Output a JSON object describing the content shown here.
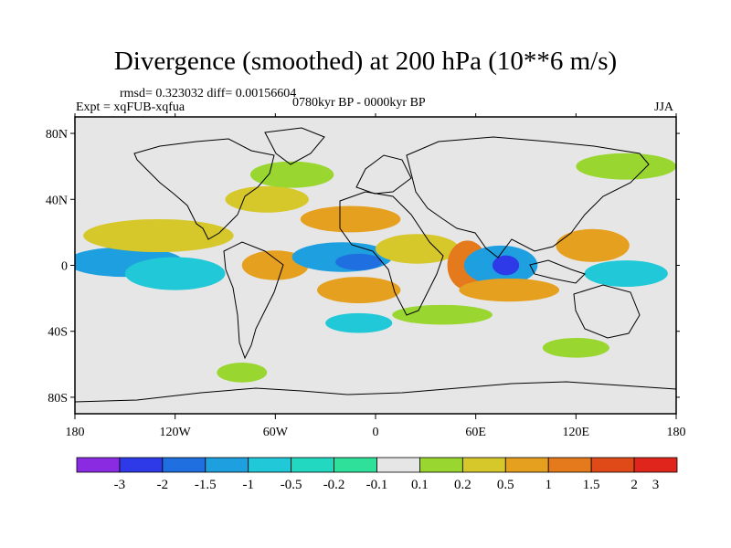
{
  "header": {
    "title": "Divergence (smoothed) at 200 hPa (10**6 m/s)",
    "stats": "rmsd= 0.323032 diff= 0.00156604",
    "experiment": "Expt = xqFUB-xqfua",
    "period": "0780kyr BP - 0000kyr BP",
    "season": "JJA"
  },
  "chart_data": {
    "type": "heatmap",
    "title": "Divergence (smoothed) at 200 hPa (10**6 m/s)",
    "xlabel": "",
    "ylabel": "",
    "x_ticks": [
      {
        "value": -180,
        "label": "180"
      },
      {
        "value": -120,
        "label": "120W"
      },
      {
        "value": -60,
        "label": "60W"
      },
      {
        "value": 0,
        "label": "0"
      },
      {
        "value": 60,
        "label": "60E"
      },
      {
        "value": 120,
        "label": "120E"
      },
      {
        "value": 180,
        "label": "180"
      }
    ],
    "y_ticks": [
      {
        "value": 80,
        "label": "80N"
      },
      {
        "value": 40,
        "label": "40N"
      },
      {
        "value": 0,
        "label": "0"
      },
      {
        "value": -40,
        "label": "40S"
      },
      {
        "value": -80,
        "label": "80S"
      }
    ],
    "xlim": [
      -180,
      180
    ],
    "ylim": [
      -90,
      90
    ],
    "colorbar": {
      "labels": [
        "-3",
        "-2",
        "-1.5",
        "-1",
        "-0.5",
        "-0.2",
        "-0.1",
        "0.1",
        "0.2",
        "0.5",
        "1",
        "1.5",
        "2",
        "3"
      ],
      "colors": [
        "#8a2be2",
        "#2e3ae8",
        "#1f6fe0",
        "#1e9fe0",
        "#20c8d8",
        "#22d8c0",
        "#2fe09a",
        "#e6e6e6",
        "#99d630",
        "#d6c82a",
        "#e6a020",
        "#e57a1c",
        "#e04a18",
        "#e0261c"
      ]
    },
    "regions": [
      {
        "value": -1.0,
        "lon": -150,
        "lat": 2,
        "w": 35,
        "h": 9
      },
      {
        "value": -0.5,
        "lon": -120,
        "lat": -5,
        "w": 30,
        "h": 10
      },
      {
        "value": 0.5,
        "lon": -130,
        "lat": 18,
        "w": 45,
        "h": 10
      },
      {
        "value": 1.0,
        "lon": -60,
        "lat": 0,
        "w": 20,
        "h": 9
      },
      {
        "value": 0.5,
        "lon": -65,
        "lat": 40,
        "w": 25,
        "h": 8
      },
      {
        "value": 0.2,
        "lon": -50,
        "lat": 55,
        "w": 25,
        "h": 8
      },
      {
        "value": -1.0,
        "lon": -20,
        "lat": 5,
        "w": 30,
        "h": 9
      },
      {
        "value": -1.5,
        "lon": -10,
        "lat": 2,
        "w": 14,
        "h": 5
      },
      {
        "value": 1.0,
        "lon": -10,
        "lat": -15,
        "w": 25,
        "h": 8
      },
      {
        "value": 1.0,
        "lon": -15,
        "lat": 28,
        "w": 30,
        "h": 8
      },
      {
        "value": 0.5,
        "lon": 25,
        "lat": 10,
        "w": 25,
        "h": 9
      },
      {
        "value": 1.5,
        "lon": 55,
        "lat": 0,
        "w": 12,
        "h": 15
      },
      {
        "value": -1.0,
        "lon": 75,
        "lat": 0,
        "w": 22,
        "h": 12
      },
      {
        "value": -2.0,
        "lon": 78,
        "lat": 0,
        "w": 8,
        "h": 6
      },
      {
        "value": 1.0,
        "lon": 80,
        "lat": -15,
        "w": 30,
        "h": 7
      },
      {
        "value": 1.0,
        "lon": 130,
        "lat": 12,
        "w": 22,
        "h": 10
      },
      {
        "value": -0.5,
        "lon": 150,
        "lat": -5,
        "w": 25,
        "h": 8
      },
      {
        "value": 0.2,
        "lon": 150,
        "lat": 60,
        "w": 30,
        "h": 8
      },
      {
        "value": -0.5,
        "lon": -10,
        "lat": -35,
        "w": 20,
        "h": 6
      },
      {
        "value": 0.2,
        "lon": 40,
        "lat": -30,
        "w": 30,
        "h": 6
      },
      {
        "value": 0.2,
        "lon": -80,
        "lat": -65,
        "w": 15,
        "h": 6
      },
      {
        "value": 0.2,
        "lon": 120,
        "lat": -50,
        "w": 20,
        "h": 6
      }
    ]
  }
}
